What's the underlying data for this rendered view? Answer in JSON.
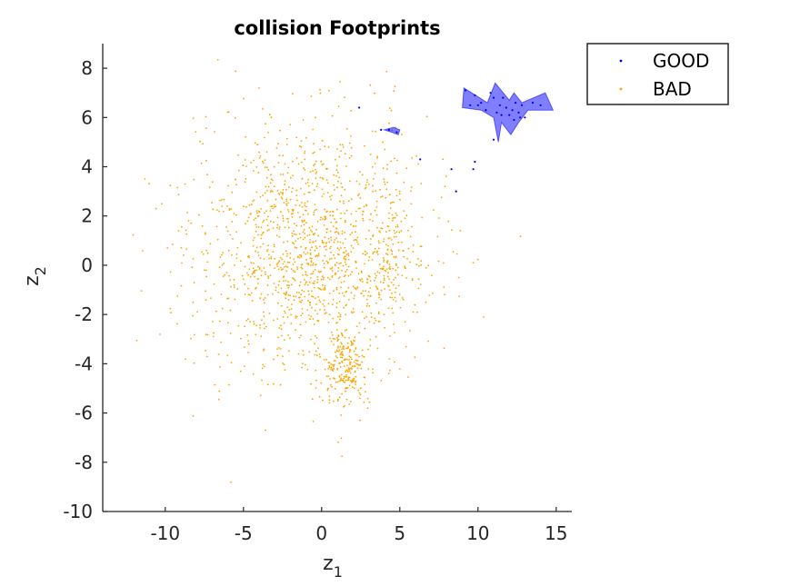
{
  "chart_data": {
    "type": "scatter",
    "title": "collision Footprints",
    "xlabel": "z",
    "xlabel_sub": "1",
    "ylabel": "z",
    "ylabel_sub": "2",
    "xlim": [
      -14,
      16
    ],
    "ylim": [
      -10,
      9
    ],
    "xticks": [
      -10,
      -5,
      0,
      5,
      10,
      15
    ],
    "yticks": [
      -10,
      -8,
      -6,
      -4,
      -2,
      0,
      2,
      4,
      6,
      8
    ],
    "grid": false,
    "legend_position": "outside-top-right",
    "series": [
      {
        "name": "GOOD",
        "color": "#0000ff",
        "points": [
          [
            9.2,
            7.1
          ],
          [
            9.5,
            6.5
          ],
          [
            9.8,
            6.9
          ],
          [
            10.2,
            6.6
          ],
          [
            10.5,
            6.3
          ],
          [
            10.8,
            7.0
          ],
          [
            11.0,
            6.8
          ],
          [
            11.2,
            6.2
          ],
          [
            11.4,
            6.5
          ],
          [
            11.6,
            6.8
          ],
          [
            11.8,
            6.4
          ],
          [
            12.0,
            6.1
          ],
          [
            12.2,
            6.3
          ],
          [
            12.4,
            6.6
          ],
          [
            12.6,
            6.2
          ],
          [
            12.8,
            6.5
          ],
          [
            13.0,
            6.0
          ],
          [
            12.3,
            5.9
          ],
          [
            12.7,
            6.0
          ],
          [
            11.5,
            6.1
          ],
          [
            10.0,
            6.5
          ],
          [
            13.5,
            6.6
          ],
          [
            14.0,
            6.5
          ],
          [
            4.3,
            5.5
          ],
          [
            4.8,
            5.4
          ],
          [
            2.4,
            6.4
          ],
          [
            3.8,
            5.5
          ],
          [
            6.3,
            4.3
          ],
          [
            8.3,
            3.9
          ],
          [
            8.6,
            3.0
          ],
          [
            9.8,
            4.2
          ],
          [
            9.7,
            3.9
          ],
          [
            10.5,
            6.3
          ],
          [
            11.0,
            5.1
          ]
        ],
        "footprints": [
          [
            [
              9.1,
              7.2
            ],
            [
              10.6,
              6.6
            ],
            [
              11.1,
              7.4
            ],
            [
              12.0,
              6.7
            ],
            [
              12.3,
              7.0
            ],
            [
              12.8,
              6.6
            ],
            [
              14.3,
              7.0
            ],
            [
              14.8,
              6.3
            ],
            [
              13.2,
              6.3
            ],
            [
              12.6,
              5.8
            ],
            [
              12.1,
              5.3
            ],
            [
              11.5,
              5.8
            ],
            [
              11.3,
              5.0
            ],
            [
              11.0,
              6.0
            ],
            [
              10.2,
              6.3
            ],
            [
              9.0,
              6.4
            ]
          ],
          [
            [
              4.0,
              5.5
            ],
            [
              4.6,
              5.6
            ],
            [
              5.0,
              5.5
            ],
            [
              4.9,
              5.3
            ],
            [
              4.5,
              5.4
            ]
          ]
        ]
      },
      {
        "name": "BAD",
        "color": "#ffa500",
        "generator": {
          "count": 1700,
          "seed": 12345
        }
      }
    ]
  }
}
